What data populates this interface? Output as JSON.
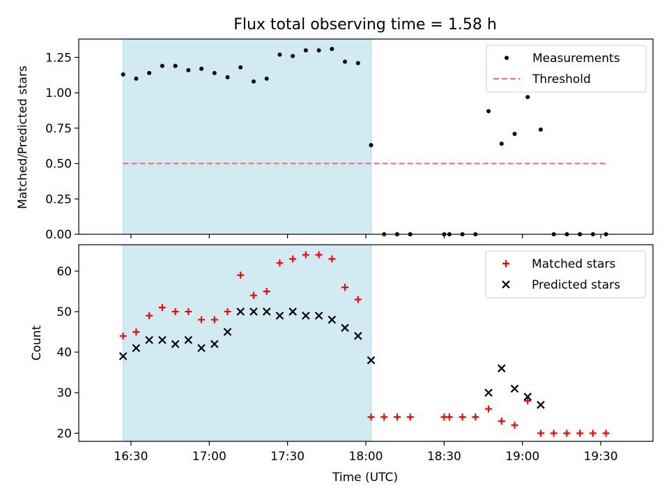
{
  "title": "Flux total observing time = 1.58 h",
  "colors": {
    "band": "#add8e6",
    "measure": "#000000",
    "threshold": "#ff6666",
    "matched": "#ff0000",
    "predicted": "#000000"
  },
  "x_axis": {
    "label": "Time (UTC)",
    "ticks": [
      "16:30",
      "17:00",
      "17:30",
      "18:00",
      "18:30",
      "19:00",
      "19:30"
    ],
    "tick_minutes": [
      990,
      1020,
      1050,
      1080,
      1110,
      1140,
      1170
    ],
    "range_minutes": [
      970,
      1190
    ]
  },
  "chart_data": [
    {
      "type": "scatter",
      "ylabel": "Matched/Predicted stars",
      "ylim": [
        0,
        1.38
      ],
      "yticks": [
        "0.00",
        "0.25",
        "0.50",
        "0.75",
        "1.00",
        "1.25"
      ],
      "ytick_values": [
        0,
        0.25,
        0.5,
        0.75,
        1.0,
        1.25
      ],
      "shaded_interval": [
        "16:27",
        "18:02"
      ],
      "legend_position": "top-right",
      "series": [
        {
          "name": "Measurements",
          "marker": "dot",
          "x": [
            "16:27",
            "16:32",
            "16:37",
            "16:42",
            "16:47",
            "16:52",
            "16:57",
            "17:02",
            "17:07",
            "17:12",
            "17:17",
            "17:22",
            "17:27",
            "17:32",
            "17:37",
            "17:42",
            "17:47",
            "17:52",
            "17:57",
            "18:02",
            "18:07",
            "18:12",
            "18:17",
            "18:30",
            "18:32",
            "18:37",
            "18:42",
            "18:47",
            "18:52",
            "18:57",
            "19:02",
            "19:07",
            "19:12",
            "19:17",
            "19:22",
            "19:27",
            "19:32"
          ],
          "y": [
            1.13,
            1.1,
            1.14,
            1.19,
            1.19,
            1.16,
            1.17,
            1.14,
            1.11,
            1.18,
            1.08,
            1.1,
            1.27,
            1.26,
            1.3,
            1.3,
            1.31,
            1.22,
            1.21,
            0.63,
            0,
            0,
            0,
            0,
            0,
            0,
            0,
            0.87,
            0.64,
            0.71,
            0.97,
            0.74,
            0,
            0,
            0,
            0,
            0
          ]
        },
        {
          "name": "Threshold",
          "style": "dashed",
          "x": [
            "16:27",
            "19:32"
          ],
          "y": [
            0.5,
            0.5
          ]
        }
      ]
    },
    {
      "type": "scatter",
      "ylabel": "Count",
      "ylim": [
        18,
        66.5
      ],
      "yticks": [
        "20",
        "30",
        "40",
        "50",
        "60"
      ],
      "ytick_values": [
        20,
        30,
        40,
        50,
        60
      ],
      "shaded_interval": [
        "16:27",
        "18:02"
      ],
      "legend_position": "top-right",
      "series": [
        {
          "name": "Matched stars",
          "marker": "plus",
          "x": [
            "16:27",
            "16:32",
            "16:37",
            "16:42",
            "16:47",
            "16:52",
            "16:57",
            "17:02",
            "17:07",
            "17:12",
            "17:17",
            "17:22",
            "17:27",
            "17:32",
            "17:37",
            "17:42",
            "17:47",
            "17:52",
            "17:57",
            "18:02",
            "18:07",
            "18:12",
            "18:17",
            "18:30",
            "18:32",
            "18:37",
            "18:42",
            "18:47",
            "18:52",
            "18:57",
            "19:02",
            "19:07",
            "19:12",
            "19:17",
            "19:22",
            "19:27",
            "19:32"
          ],
          "y": [
            44,
            45,
            49,
            51,
            50,
            50,
            48,
            48,
            50,
            59,
            54,
            55,
            62,
            63,
            64,
            64,
            63,
            56,
            53,
            24,
            24,
            24,
            24,
            24,
            24,
            24,
            24,
            26,
            23,
            22,
            28,
            20,
            20,
            20,
            20,
            20,
            20
          ]
        },
        {
          "name": "Predicted stars",
          "marker": "x",
          "x": [
            "16:27",
            "16:32",
            "16:37",
            "16:42",
            "16:47",
            "16:52",
            "16:57",
            "17:02",
            "17:07",
            "17:12",
            "17:17",
            "17:22",
            "17:27",
            "17:32",
            "17:37",
            "17:42",
            "17:47",
            "17:52",
            "17:57",
            "18:02",
            "18:47",
            "18:52",
            "18:57",
            "19:02",
            "19:07"
          ],
          "y": [
            39,
            41,
            43,
            43,
            42,
            43,
            41,
            42,
            45,
            50,
            50,
            50,
            49,
            50,
            49,
            49,
            48,
            46,
            44,
            38,
            30,
            36,
            31,
            29,
            27
          ]
        }
      ]
    }
  ]
}
